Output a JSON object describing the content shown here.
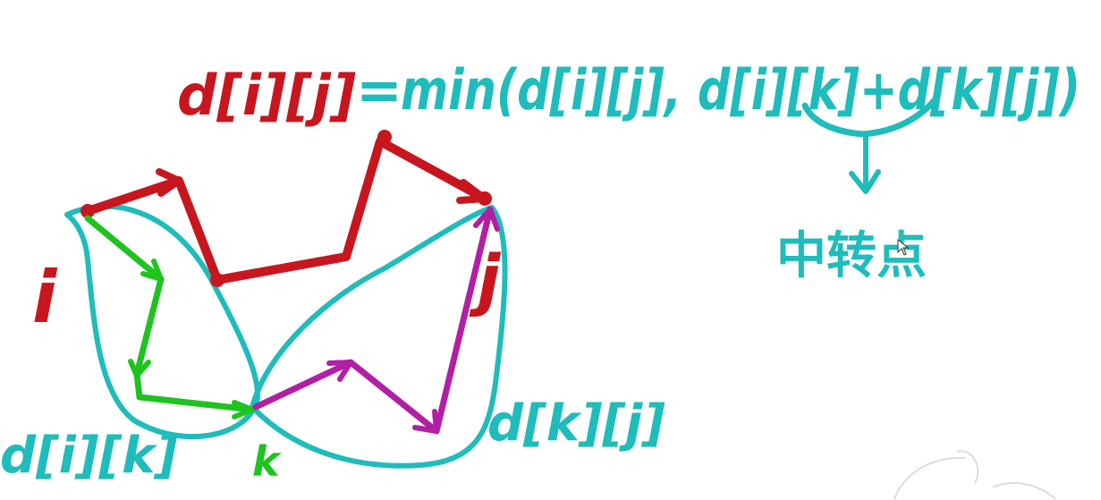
{
  "formula": {
    "lhs": "d[i][j]",
    "equals": "=",
    "rhs": "min(d[i][j], d[i][k]+d[k][j])"
  },
  "annotation": {
    "transit_point": "中转点"
  },
  "labels": {
    "start": "i",
    "end": "j",
    "middle": "k",
    "left_path": "d[i][k]",
    "right_path": "d[k][j]"
  },
  "colors": {
    "red": "#c8161e",
    "teal": "#1fbcbc",
    "green": "#1fc31f",
    "purple": "#b21fa5"
  }
}
